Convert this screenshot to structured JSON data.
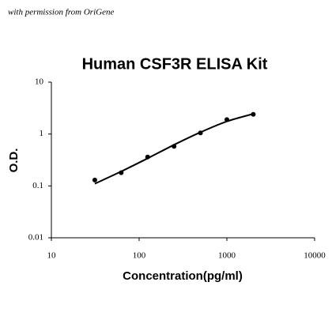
{
  "chart_data": {
    "type": "scatter",
    "title": "Human CSF3R ELISA Kit",
    "annotations": [
      "with permission from OriGene"
    ],
    "xlabel": "Concentration(pg/ml)",
    "ylabel": "O.D.",
    "x": [
      31.25,
      62.5,
      125,
      250,
      500,
      1000,
      2000
    ],
    "values": [
      0.13,
      0.18,
      0.36,
      0.58,
      1.05,
      1.9,
      2.4
    ],
    "fit_values": [
      0.11,
      0.19,
      0.34,
      0.62,
      1.08,
      1.75,
      2.45
    ],
    "color": "#000000",
    "xlog": true,
    "ylog": true,
    "xlim": [
      10,
      10000
    ],
    "ylim": [
      0.01,
      10
    ],
    "xticks": [
      10,
      100,
      1000,
      10000
    ],
    "yticks": [
      0.01,
      0.1,
      1,
      10
    ],
    "grid": false
  }
}
